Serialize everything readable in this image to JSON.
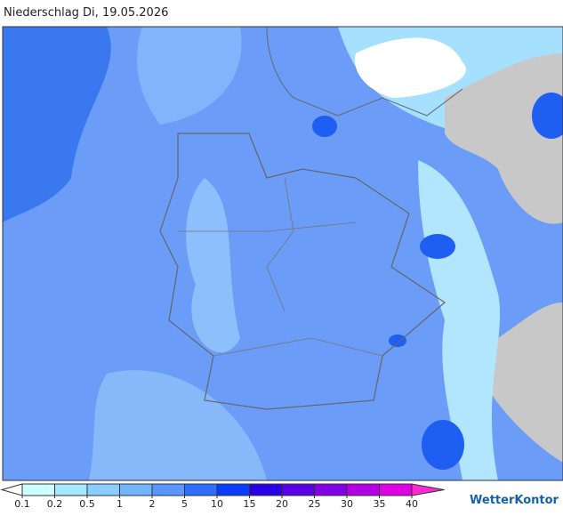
{
  "title": "Niederschlag Di, 19.05.2026",
  "legend": {
    "ticks": [
      0.1,
      0.2,
      0.5,
      1,
      2,
      5,
      10,
      15,
      20,
      25,
      30,
      35,
      40
    ],
    "colors": [
      "#ccffff",
      "#a6e6ff",
      "#8ccdff",
      "#73b4ff",
      "#5a96ff",
      "#2d6eff",
      "#0a3cff",
      "#2800e6",
      "#5a00e6",
      "#8200e6",
      "#b400e6",
      "#e100e6"
    ],
    "under_color": "#ffffff",
    "over_color": "#ff28d2"
  },
  "brand": "WetterKontor"
}
